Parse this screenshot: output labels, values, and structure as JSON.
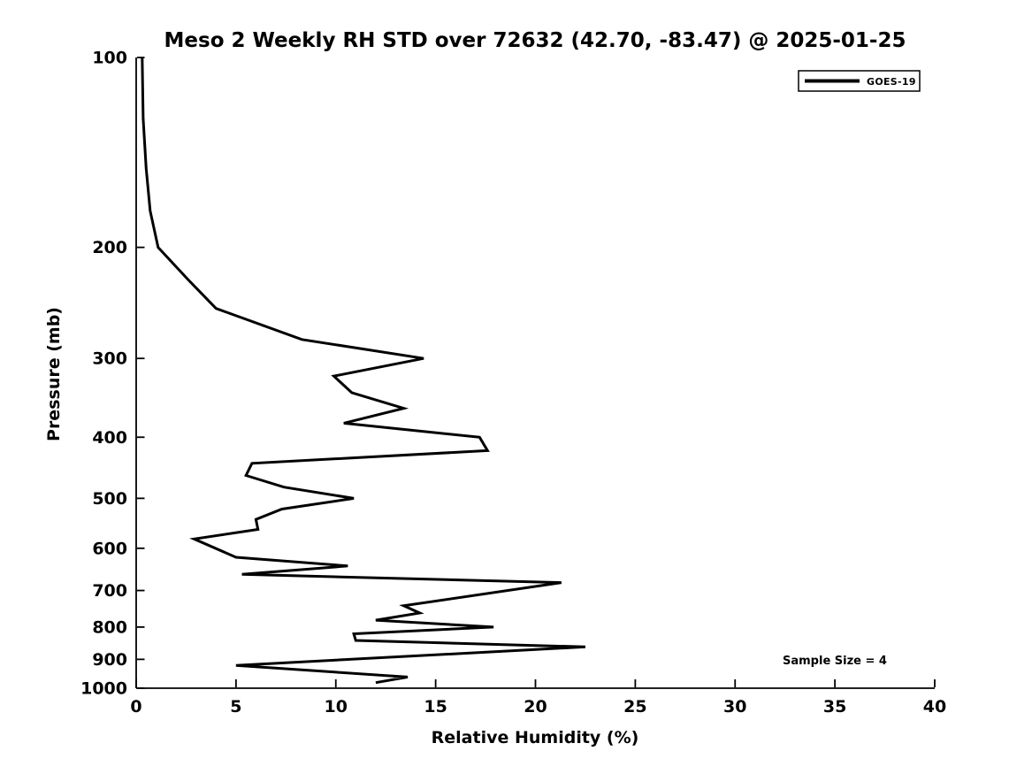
{
  "chart_data": {
    "type": "line",
    "title": "Meso 2 Weekly RH STD over 72632 (42.70, -83.47) @ 2025-01-25",
    "xlabel": "Relative Humidity (%)",
    "ylabel": "Pressure (mb)",
    "x_axis": {
      "lim": [
        0,
        40
      ],
      "ticks": [
        0,
        5,
        10,
        15,
        20,
        25,
        30,
        35,
        40
      ]
    },
    "y_axis": {
      "scale": "log",
      "inverted": true,
      "lim": [
        100,
        1000
      ],
      "ticks": [
        100,
        200,
        300,
        400,
        500,
        600,
        700,
        800,
        900,
        1000
      ]
    },
    "grid": false,
    "legend_position": "upper right",
    "legend": [
      "GOES-19"
    ],
    "annotations": [
      "Sample Size = 4"
    ],
    "series": [
      {
        "name": "GOES-19",
        "color": "#000000",
        "points_format": "[pressure_mb, rh_std_percent]",
        "points": [
          [
            100,
            0.3
          ],
          [
            125,
            0.35
          ],
          [
            150,
            0.5
          ],
          [
            175,
            0.7
          ],
          [
            200,
            1.1
          ],
          [
            225,
            2.6
          ],
          [
            250,
            4.0
          ],
          [
            280,
            8.3
          ],
          [
            300,
            14.4
          ],
          [
            320,
            9.9
          ],
          [
            340,
            10.8
          ],
          [
            360,
            13.4
          ],
          [
            380,
            10.4
          ],
          [
            400,
            17.2
          ],
          [
            420,
            17.6
          ],
          [
            440,
            5.8
          ],
          [
            460,
            5.5
          ],
          [
            480,
            7.4
          ],
          [
            500,
            10.9
          ],
          [
            520,
            7.3
          ],
          [
            540,
            6.0
          ],
          [
            560,
            6.1
          ],
          [
            580,
            2.9
          ],
          [
            620,
            5.0
          ],
          [
            640,
            10.6
          ],
          [
            660,
            5.3
          ],
          [
            680,
            21.3
          ],
          [
            740,
            13.4
          ],
          [
            760,
            14.2
          ],
          [
            780,
            12.0
          ],
          [
            800,
            17.9
          ],
          [
            820,
            10.9
          ],
          [
            840,
            11.0
          ],
          [
            860,
            22.5
          ],
          [
            920,
            5.0
          ],
          [
            960,
            13.6
          ],
          [
            980,
            12.0
          ]
        ]
      }
    ]
  }
}
